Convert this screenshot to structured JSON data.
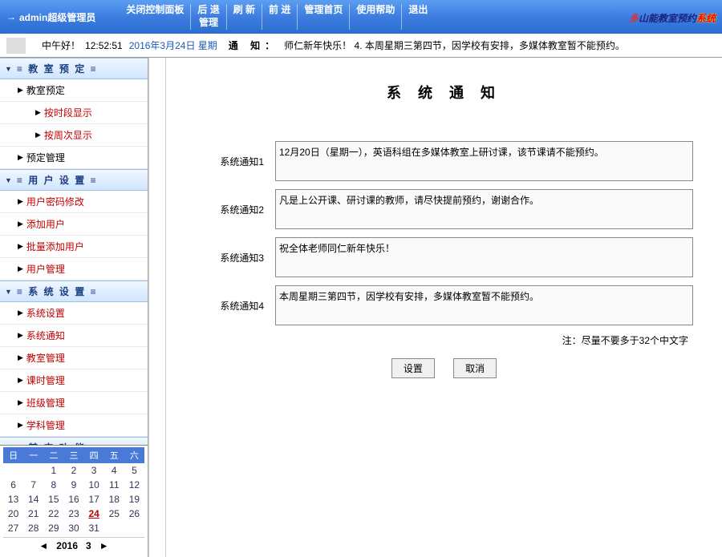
{
  "header": {
    "user": "admin超级管理员",
    "nav": [
      {
        "label": "关闭控制面板"
      },
      {
        "l1": "后 退",
        "l2": "管理"
      },
      {
        "label": "刷 新"
      },
      {
        "label": "前 进"
      },
      {
        "label": "管理首页"
      },
      {
        "label": "使用帮助"
      },
      {
        "label": "退出"
      }
    ],
    "brand": {
      "a": "多",
      "b": "山能教室预约",
      "c": "系统"
    }
  },
  "infobar": {
    "greet": "中午好！",
    "clock": "12:52:51",
    "date": "2016年3月24日 星期",
    "notice_label": "通 知：",
    "notice_text": "师仁新年快乐！ 4. 本周星期三第四节，因学校有安排，多媒体教室暂不能预约。"
  },
  "sidebar": {
    "cats": [
      {
        "label": "≡ 教 室 预 定 ≡"
      },
      {
        "label": "≡ 用 户 设 置 ≡"
      },
      {
        "label": "≡ 系 统 设 置 ≡"
      },
      {
        "label": "≡ 其 它 功 能 ≡"
      }
    ],
    "items1": [
      {
        "label": "教室预定",
        "cls": "black"
      },
      {
        "label": "按时段显示",
        "cls": "red",
        "sub": true
      },
      {
        "label": "按周次显示",
        "cls": "red",
        "sub": true
      },
      {
        "label": "预定管理",
        "cls": "black"
      }
    ],
    "items2": [
      {
        "label": "用户密码修改",
        "cls": "red"
      },
      {
        "label": "添加用户",
        "cls": "red"
      },
      {
        "label": "批量添加用户",
        "cls": "red"
      },
      {
        "label": "用户管理",
        "cls": "red"
      }
    ],
    "items3": [
      {
        "label": "系统设置",
        "cls": "red"
      },
      {
        "label": "系统通知",
        "cls": "red"
      },
      {
        "label": "教室管理",
        "cls": "red"
      },
      {
        "label": "课时管理",
        "cls": "red"
      },
      {
        "label": "班级管理",
        "cls": "red"
      },
      {
        "label": "学科管理",
        "cls": "red"
      }
    ]
  },
  "calendar": {
    "head": [
      "日",
      "一",
      "二",
      "三",
      "四",
      "五",
      "六"
    ],
    "cells": [
      "",
      "",
      "1",
      "2",
      "3",
      "4",
      "5",
      "6",
      "7",
      "8",
      "9",
      "10",
      "11",
      "12",
      "13",
      "14",
      "15",
      "16",
      "17",
      "18",
      "19",
      "20",
      "21",
      "22",
      "23",
      "24",
      "25",
      "26",
      "27",
      "28",
      "29",
      "30",
      "31",
      "",
      ""
    ],
    "today": "24",
    "year": "2016",
    "month": "3"
  },
  "content": {
    "title": "系 统 通 知",
    "notices": [
      {
        "label": "系统通知1",
        "value": "12月20日（星期一），英语科组在多媒体教室上研讨课，该节课请不能预约。"
      },
      {
        "label": "系统通知2",
        "value": "凡是上公开课、研讨课的教师，请尽快提前预约，谢谢合作。"
      },
      {
        "label": "系统通知3",
        "value": "祝全体老师同仁新年快乐！"
      },
      {
        "label": "系统通知4",
        "value": "本周星期三第四节，因学校有安排，多媒体教室暂不能预约。"
      }
    ],
    "note": "注：尽量不要多于32个中文字",
    "buttons": {
      "set": "设置",
      "cancel": "取消"
    }
  }
}
